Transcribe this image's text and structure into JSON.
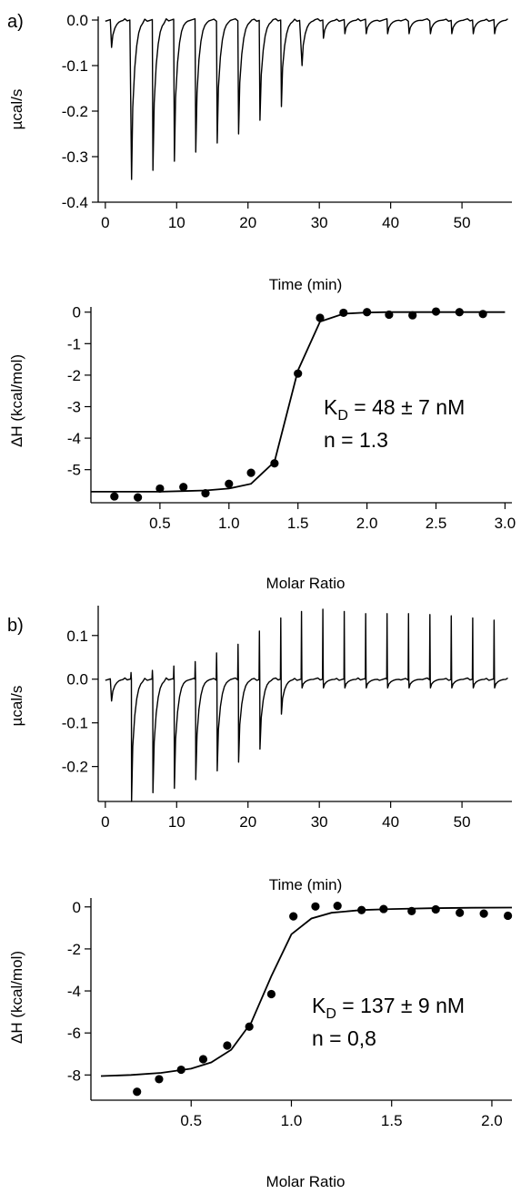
{
  "figure": {
    "label_a": "a)",
    "label_b": "b)"
  },
  "chart_data": [
    {
      "id": "a_thermogram",
      "type": "line",
      "panel_label": "a)",
      "xlabel": "Time (min)",
      "ylabel": "µcal/s",
      "xlim": [
        -1,
        57
      ],
      "ylim": [
        -0.4,
        0.0
      ],
      "xticks": [
        0,
        10,
        20,
        30,
        40,
        50
      ],
      "yticks": [
        0.0,
        -0.1,
        -0.2,
        -0.3,
        -0.4
      ],
      "ytick_labels": [
        "0.0",
        "-0.1",
        "-0.2",
        "-0.3",
        "-0.4"
      ],
      "baseline": 0.0,
      "injections": {
        "times": [
          0.8,
          3.6,
          6.6,
          9.6,
          12.6,
          15.6,
          18.6,
          21.6,
          24.6,
          27.5,
          30.5,
          33.5,
          36.5,
          39.5,
          42.5,
          45.5,
          48.5,
          51.5,
          54.5
        ],
        "peak_values": [
          -0.06,
          -0.35,
          -0.33,
          -0.31,
          -0.29,
          -0.27,
          -0.25,
          -0.22,
          -0.19,
          -0.1,
          -0.04,
          -0.03,
          -0.03,
          -0.03,
          -0.03,
          -0.03,
          -0.03,
          -0.03,
          -0.03
        ]
      },
      "grid": false
    },
    {
      "id": "a_isotherm",
      "type": "scatter",
      "xlabel": "Molar Ratio",
      "ylabel": "ΔH (kcal/mol)",
      "xlim": [
        0,
        3.05
      ],
      "ylim": [
        -6.05,
        0.05
      ],
      "xticks": [
        0.5,
        1.0,
        1.5,
        2.0,
        2.5,
        3.0
      ],
      "xtick_labels": [
        "0.5",
        "1.0",
        "1.5",
        "2.0",
        "2.5",
        "3.0"
      ],
      "yticks": [
        0,
        -1,
        -2,
        -3,
        -4,
        -5
      ],
      "ytick_labels": [
        "0",
        "-1",
        "-2",
        "-3",
        "-4",
        "-5"
      ],
      "series": [
        {
          "kind": "points",
          "x": [
            0.17,
            0.34,
            0.5,
            0.67,
            0.83,
            1.0,
            1.16,
            1.33,
            1.5,
            1.66,
            1.83,
            2.0,
            2.16,
            2.33,
            2.5,
            2.67,
            2.84
          ],
          "y": [
            -5.85,
            -5.88,
            -5.6,
            -5.55,
            -5.75,
            -5.45,
            -5.1,
            -4.8,
            -1.95,
            -0.18,
            -0.02,
            0.0,
            -0.08,
            -0.1,
            0.02,
            0.0,
            -0.06
          ]
        },
        {
          "kind": "fit",
          "x": [
            0.0,
            0.17,
            0.34,
            0.5,
            0.67,
            0.83,
            1.0,
            1.16,
            1.33,
            1.5,
            1.66,
            1.83,
            2.0,
            2.16,
            2.33,
            2.5,
            2.67,
            2.84,
            3.0
          ],
          "y": [
            -5.7,
            -5.7,
            -5.7,
            -5.7,
            -5.68,
            -5.66,
            -5.6,
            -5.45,
            -4.75,
            -1.85,
            -0.3,
            -0.05,
            -0.01,
            0.0,
            0.0,
            0.0,
            0.0,
            0.0,
            0.0
          ]
        }
      ],
      "annotation": {
        "kd_symbol": "K",
        "kd_subscript": "D",
        "kd_text": " = 48 ± 7 nM",
        "n_text": "n = 1.3"
      },
      "grid": false
    },
    {
      "id": "b_thermogram",
      "type": "line",
      "panel_label": "b)",
      "xlabel": "Time (min)",
      "ylabel": "µcal/s",
      "xlim": [
        -1,
        57
      ],
      "ylim": [
        -0.28,
        0.16
      ],
      "xticks": [
        0,
        10,
        20,
        30,
        40,
        50
      ],
      "yticks": [
        0.1,
        0.0,
        -0.1,
        -0.2
      ],
      "ytick_labels": [
        "0.1",
        "0.0",
        "-0.1",
        "-0.2"
      ],
      "baseline": 0.0,
      "injections": {
        "times": [
          0.8,
          3.6,
          6.6,
          9.6,
          12.6,
          15.6,
          18.6,
          21.6,
          24.6,
          27.5,
          30.5,
          33.5,
          36.5,
          39.5,
          42.5,
          45.5,
          48.5,
          51.5,
          54.5
        ],
        "peak_values": [
          -0.05,
          -0.28,
          -0.26,
          -0.25,
          -0.23,
          -0.21,
          -0.19,
          -0.16,
          -0.08,
          -0.02,
          -0.02,
          -0.02,
          -0.02,
          -0.02,
          -0.02,
          -0.02,
          -0.02,
          -0.02,
          -0.02
        ],
        "positive_peaks": [
          0.0,
          0.015,
          0.02,
          0.03,
          0.04,
          0.06,
          0.08,
          0.11,
          0.14,
          0.155,
          0.16,
          0.155,
          0.15,
          0.15,
          0.15,
          0.148,
          0.145,
          0.14,
          0.135
        ]
      },
      "grid": false
    },
    {
      "id": "b_isotherm",
      "type": "scatter",
      "xlabel": "Molar Ratio",
      "ylabel": "ΔH (kcal/mol)",
      "xlim": [
        0,
        2.1
      ],
      "ylim": [
        -9.2,
        0.25
      ],
      "xticks": [
        0.5,
        1.0,
        1.5,
        2.0
      ],
      "xtick_labels": [
        "0.5",
        "1.0",
        "1.5",
        "2.0"
      ],
      "yticks": [
        0,
        -2,
        -4,
        -6,
        -8
      ],
      "ytick_labels": [
        "0",
        "-2",
        "-4",
        "-6",
        "-8"
      ],
      "series": [
        {
          "kind": "points",
          "x": [
            0.23,
            0.34,
            0.45,
            0.56,
            0.68,
            0.79,
            0.9,
            1.01,
            1.12,
            1.23,
            1.35,
            1.46,
            1.6,
            1.72,
            1.84,
            1.96,
            2.08
          ],
          "y": [
            -8.8,
            -8.2,
            -7.75,
            -7.25,
            -6.6,
            -5.7,
            -4.15,
            -0.45,
            0.02,
            0.05,
            -0.15,
            -0.1,
            -0.2,
            -0.12,
            -0.28,
            -0.32,
            -0.42
          ]
        },
        {
          "kind": "fit",
          "x": [
            0.05,
            0.2,
            0.35,
            0.5,
            0.6,
            0.7,
            0.8,
            0.9,
            1.0,
            1.1,
            1.2,
            1.35,
            1.5,
            1.7,
            1.9,
            2.1
          ],
          "y": [
            -8.05,
            -8.0,
            -7.9,
            -7.7,
            -7.4,
            -6.8,
            -5.5,
            -3.3,
            -1.3,
            -0.55,
            -0.28,
            -0.15,
            -0.1,
            -0.06,
            -0.04,
            -0.03
          ]
        }
      ],
      "annotation": {
        "kd_symbol": "K",
        "kd_subscript": "D",
        "kd_text": " = 137 ± 9 nM",
        "n_text": "n = 0,8"
      },
      "grid": false
    }
  ]
}
